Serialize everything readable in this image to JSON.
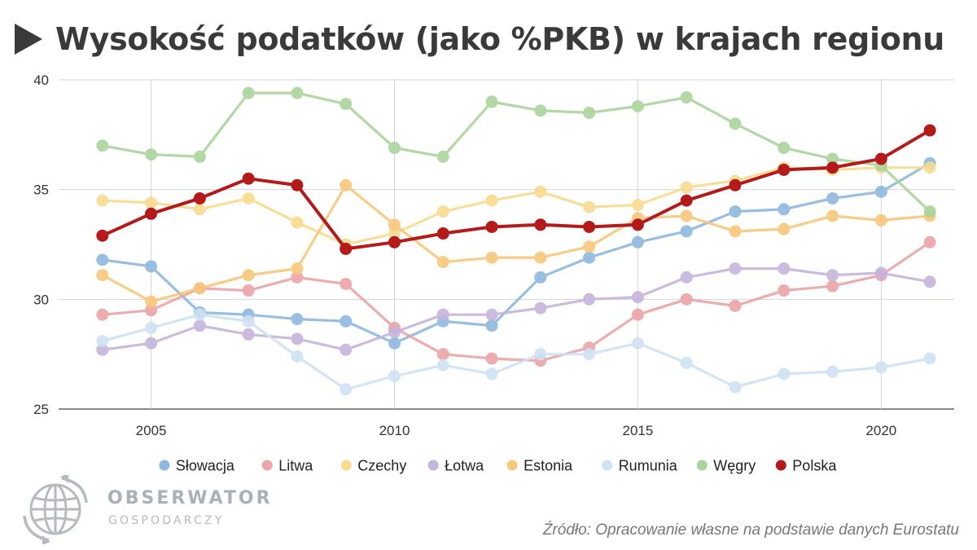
{
  "title": "Wysokość podatków (jako %PKB) w krajach regionu",
  "source": "Źródło: Opracowanie własne na podstawie danych Eurostatu",
  "logo": {
    "name": "OBSERWATOR",
    "sub": "GOSPODARCZY"
  },
  "chart_data": {
    "type": "line",
    "title": "",
    "xlabel": "",
    "ylabel": "",
    "x": [
      2004,
      2005,
      2006,
      2007,
      2008,
      2009,
      2010,
      2011,
      2012,
      2013,
      2014,
      2015,
      2016,
      2017,
      2018,
      2019,
      2020,
      2021
    ],
    "xticks": [
      2005,
      2010,
      2015,
      2020
    ],
    "yticks": [
      25,
      30,
      35,
      40
    ],
    "xlim": [
      2003.1,
      2021.5
    ],
    "ylim": [
      25,
      40
    ],
    "grid": true,
    "legend": "bottom",
    "series": [
      {
        "name": "Słowacja",
        "color": "#8db8df",
        "values": [
          31.8,
          31.5,
          29.4,
          29.3,
          29.1,
          29.0,
          28.0,
          29.0,
          28.8,
          31.0,
          31.9,
          32.6,
          33.1,
          34.0,
          34.1,
          34.6,
          34.9,
          36.2
        ]
      },
      {
        "name": "Litwa",
        "color": "#eca4a6",
        "values": [
          29.3,
          29.5,
          30.5,
          30.4,
          31.0,
          30.7,
          28.7,
          27.5,
          27.3,
          27.2,
          27.8,
          29.3,
          30.0,
          29.7,
          30.4,
          30.6,
          31.1,
          32.6
        ]
      },
      {
        "name": "Czechy",
        "color": "#f8db8e",
        "values": [
          34.5,
          34.4,
          34.1,
          34.6,
          33.5,
          32.5,
          33.0,
          34.0,
          34.5,
          34.9,
          34.2,
          34.3,
          35.1,
          35.4,
          36.0,
          35.9,
          36.0,
          36.0
        ]
      },
      {
        "name": "Łotwa",
        "color": "#c5b4dc",
        "values": [
          27.7,
          28.0,
          28.8,
          28.4,
          28.2,
          27.7,
          28.5,
          29.3,
          29.3,
          29.6,
          30.0,
          30.1,
          31.0,
          31.4,
          31.4,
          31.1,
          31.2,
          30.8
        ]
      },
      {
        "name": "Estonia",
        "color": "#f8c77a",
        "values": [
          31.1,
          29.9,
          30.5,
          31.1,
          31.4,
          35.2,
          33.4,
          31.7,
          31.9,
          31.9,
          32.4,
          33.7,
          33.8,
          33.1,
          33.2,
          33.8,
          33.6,
          33.8
        ]
      },
      {
        "name": "Rumunia",
        "color": "#cfe2f3",
        "values": [
          28.1,
          28.7,
          29.3,
          29.0,
          27.4,
          25.9,
          26.5,
          27.0,
          26.6,
          27.5,
          27.5,
          28.0,
          27.1,
          26.0,
          26.6,
          26.7,
          26.9,
          27.3
        ]
      },
      {
        "name": "Węgry",
        "color": "#a9d49c",
        "values": [
          37.0,
          36.6,
          36.5,
          39.4,
          39.4,
          38.9,
          36.9,
          36.5,
          39.0,
          38.6,
          38.5,
          38.8,
          39.2,
          38.0,
          36.9,
          36.4,
          36.1,
          34.0
        ]
      },
      {
        "name": "Polska",
        "color": "#b41a1a",
        "values": [
          32.9,
          33.9,
          34.6,
          35.5,
          35.2,
          32.3,
          32.6,
          33.0,
          33.3,
          33.4,
          33.3,
          33.4,
          34.5,
          35.2,
          35.9,
          36.0,
          36.4,
          37.7
        ]
      }
    ]
  }
}
